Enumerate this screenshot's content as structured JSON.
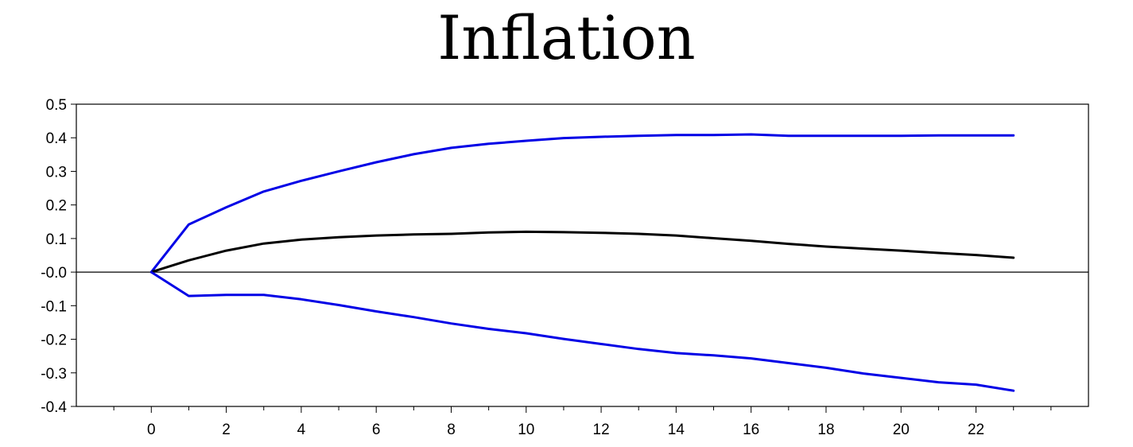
{
  "chart_data": {
    "type": "line",
    "title": "Inflation",
    "xlabel": "",
    "ylabel": "",
    "xlim": [
      -2,
      25
    ],
    "ylim": [
      -0.4,
      0.5
    ],
    "xticks": [
      0,
      2,
      4,
      6,
      8,
      10,
      12,
      14,
      16,
      18,
      20,
      22
    ],
    "xtick_labels": [
      "0",
      "2",
      "4",
      "6",
      "8",
      "10",
      "12",
      "14",
      "16",
      "18",
      "20",
      "22"
    ],
    "yticks": [
      0.5,
      0.4,
      0.3,
      0.2,
      0.1,
      0.0,
      -0.1,
      -0.2,
      -0.3,
      -0.4
    ],
    "ytick_labels": [
      "0.5",
      "0.4",
      "0.3",
      "0.2",
      "0.1",
      "-0.0",
      "-0.1",
      "-0.2",
      "-0.3",
      "-0.4"
    ],
    "grid": false,
    "zero_line": true,
    "legend": "none",
    "x": [
      0,
      1,
      2,
      3,
      4,
      5,
      6,
      7,
      8,
      9,
      10,
      11,
      12,
      13,
      14,
      15,
      16,
      17,
      18,
      19,
      20,
      21,
      22,
      23
    ],
    "series": [
      {
        "color": "#0000e6",
        "values": [
          0.0,
          0.142,
          0.193,
          0.24,
          0.272,
          0.3,
          0.327,
          0.351,
          0.37,
          0.382,
          0.391,
          0.399,
          0.403,
          0.406,
          0.408,
          0.408,
          0.41,
          0.406,
          0.406,
          0.406,
          0.406,
          0.407,
          0.407,
          0.407
        ]
      },
      {
        "color": "#000000",
        "values": [
          0.0,
          0.035,
          0.064,
          0.085,
          0.097,
          0.104,
          0.109,
          0.112,
          0.114,
          0.118,
          0.12,
          0.119,
          0.117,
          0.114,
          0.109,
          0.101,
          0.093,
          0.084,
          0.076,
          0.07,
          0.064,
          0.057,
          0.051,
          0.043
        ]
      },
      {
        "color": "#0000e6",
        "values": [
          0.0,
          -0.071,
          -0.068,
          -0.068,
          -0.081,
          -0.098,
          -0.117,
          -0.134,
          -0.153,
          -0.169,
          -0.182,
          -0.199,
          -0.214,
          -0.229,
          -0.241,
          -0.248,
          -0.257,
          -0.271,
          -0.285,
          -0.302,
          -0.315,
          -0.328,
          -0.335,
          -0.353
        ]
      }
    ]
  }
}
